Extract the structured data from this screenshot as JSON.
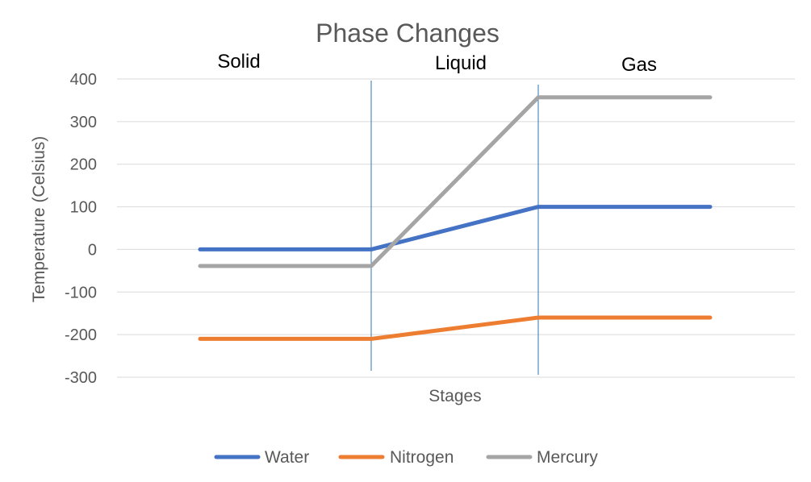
{
  "chart_data": {
    "type": "line",
    "title": "Phase Changes",
    "xlabel": "Stages",
    "ylabel": "Temperature (Celsius)",
    "ylim": [
      -300,
      400
    ],
    "yticks": [
      400,
      300,
      200,
      100,
      0,
      -100,
      -200,
      -300
    ],
    "ytick_labels": [
      "400",
      "300",
      "200",
      "100",
      "0",
      "-100",
      "-200",
      "-300"
    ],
    "grid": true,
    "legend_position": "bottom",
    "phase_labels": [
      "Solid",
      "Liquid",
      "Gas"
    ],
    "x": [
      1,
      2,
      3,
      4
    ],
    "series": [
      {
        "name": "Water",
        "color": "#4472c4",
        "values": [
          0,
          0,
          100,
          100
        ]
      },
      {
        "name": "Nitrogen",
        "color": "#ed7d31",
        "values": [
          -210,
          -210,
          -160,
          -160
        ]
      },
      {
        "name": "Mercury",
        "color": "#a5a5a5",
        "values": [
          -39,
          -39,
          357,
          357
        ]
      }
    ]
  }
}
